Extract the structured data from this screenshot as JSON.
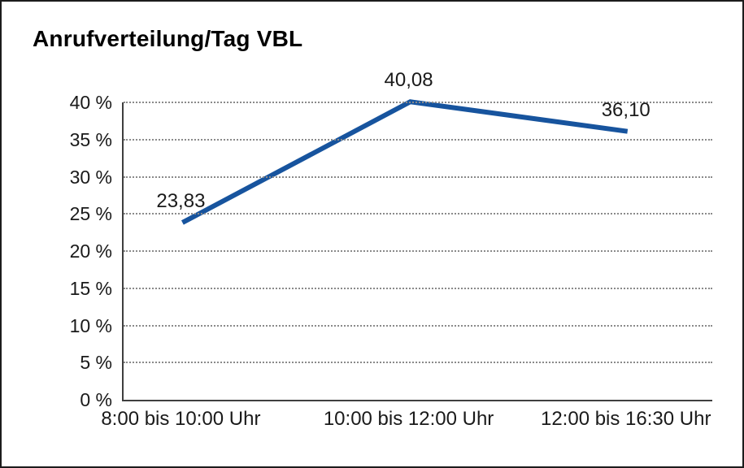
{
  "chart_data": {
    "type": "line",
    "title": "Anrufverteilung/Tag VBL",
    "categories": [
      "8:00 bis 10:00 Uhr",
      "10:00 bis 12:00 Uhr",
      "12:00 bis 16:30 Uhr"
    ],
    "series": [
      {
        "values": [
          23.83,
          40.08,
          36.1
        ],
        "value_labels": [
          "23,83",
          "40,08",
          "36,10"
        ],
        "color": "#17549E"
      }
    ],
    "ylim": [
      0,
      40
    ],
    "ytick_step": 5,
    "ytick_labels": [
      "0 %",
      "5 %",
      "10 %",
      "15 %",
      "20 %",
      "25 %",
      "30 %",
      "35 %",
      "40 %"
    ],
    "xlabel": "",
    "ylabel": "",
    "grid": "horizontal-dotted",
    "legend_position": "none",
    "data_labels_shown": true
  },
  "colors": {
    "line": "#17549E",
    "axis": "#3F3F3F",
    "gridline": "#8A8A8A",
    "frame_border": "#1C1C1C",
    "text": "#1A1A1A",
    "background": "#FFFFFF"
  }
}
